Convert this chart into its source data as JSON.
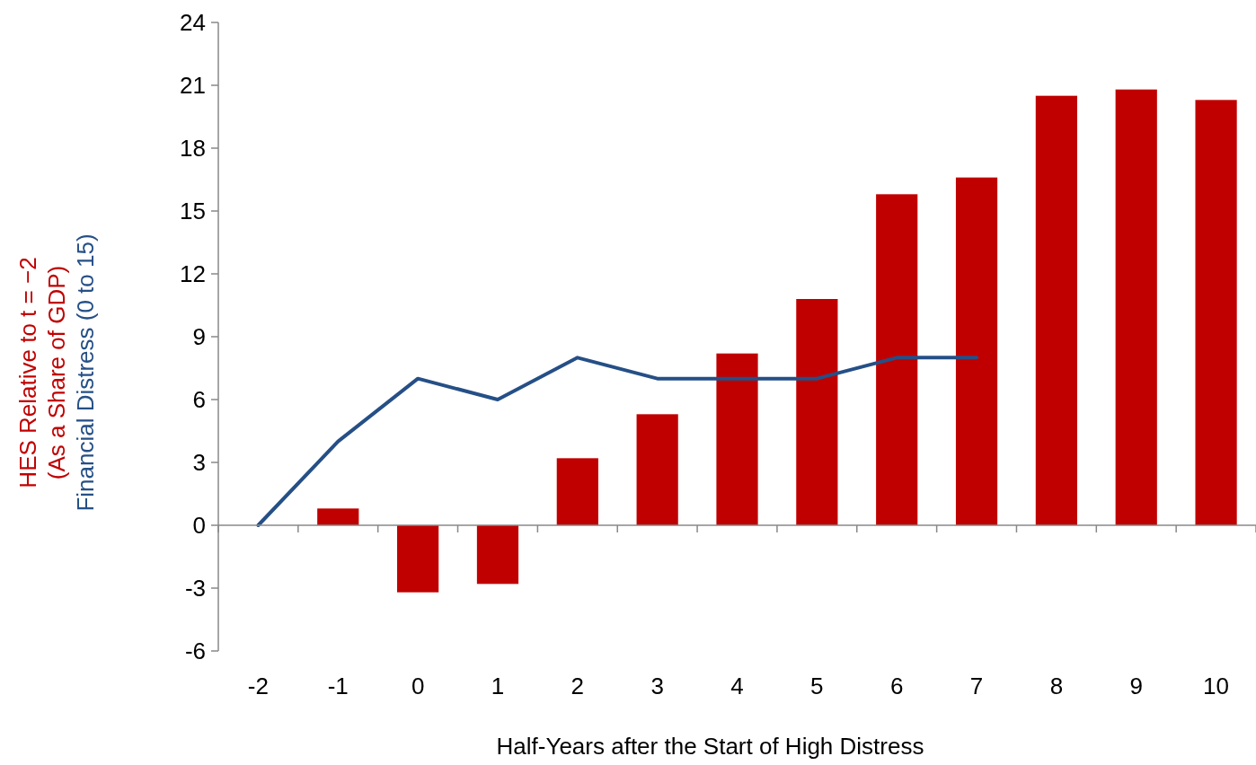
{
  "chart_data": {
    "type": "bar",
    "xlabel": "Half-Years after the Start of High Distress",
    "categories": [
      "-2",
      "-1",
      "0",
      "1",
      "2",
      "3",
      "4",
      "5",
      "6",
      "7",
      "8",
      "9",
      "10"
    ],
    "series": [
      {
        "name": "HES Relative to t = −2 (As a Share of GDP)",
        "color": "#c00000",
        "values": [
          null,
          0.8,
          -3.2,
          -2.8,
          3.2,
          5.3,
          8.2,
          10.8,
          15.8,
          16.6,
          20.5,
          20.8,
          20.3
        ]
      },
      {
        "name": "Financial Distress (0 to 15)",
        "type": "line",
        "color": "#254f86",
        "values": [
          0,
          4,
          7,
          6,
          8,
          7,
          7,
          7,
          8,
          8,
          null,
          null,
          null
        ]
      }
    ],
    "ylim": [
      -6,
      24
    ],
    "yticks": [
      -6,
      -3,
      0,
      3,
      6,
      9,
      12,
      15,
      18,
      21,
      24
    ]
  }
}
